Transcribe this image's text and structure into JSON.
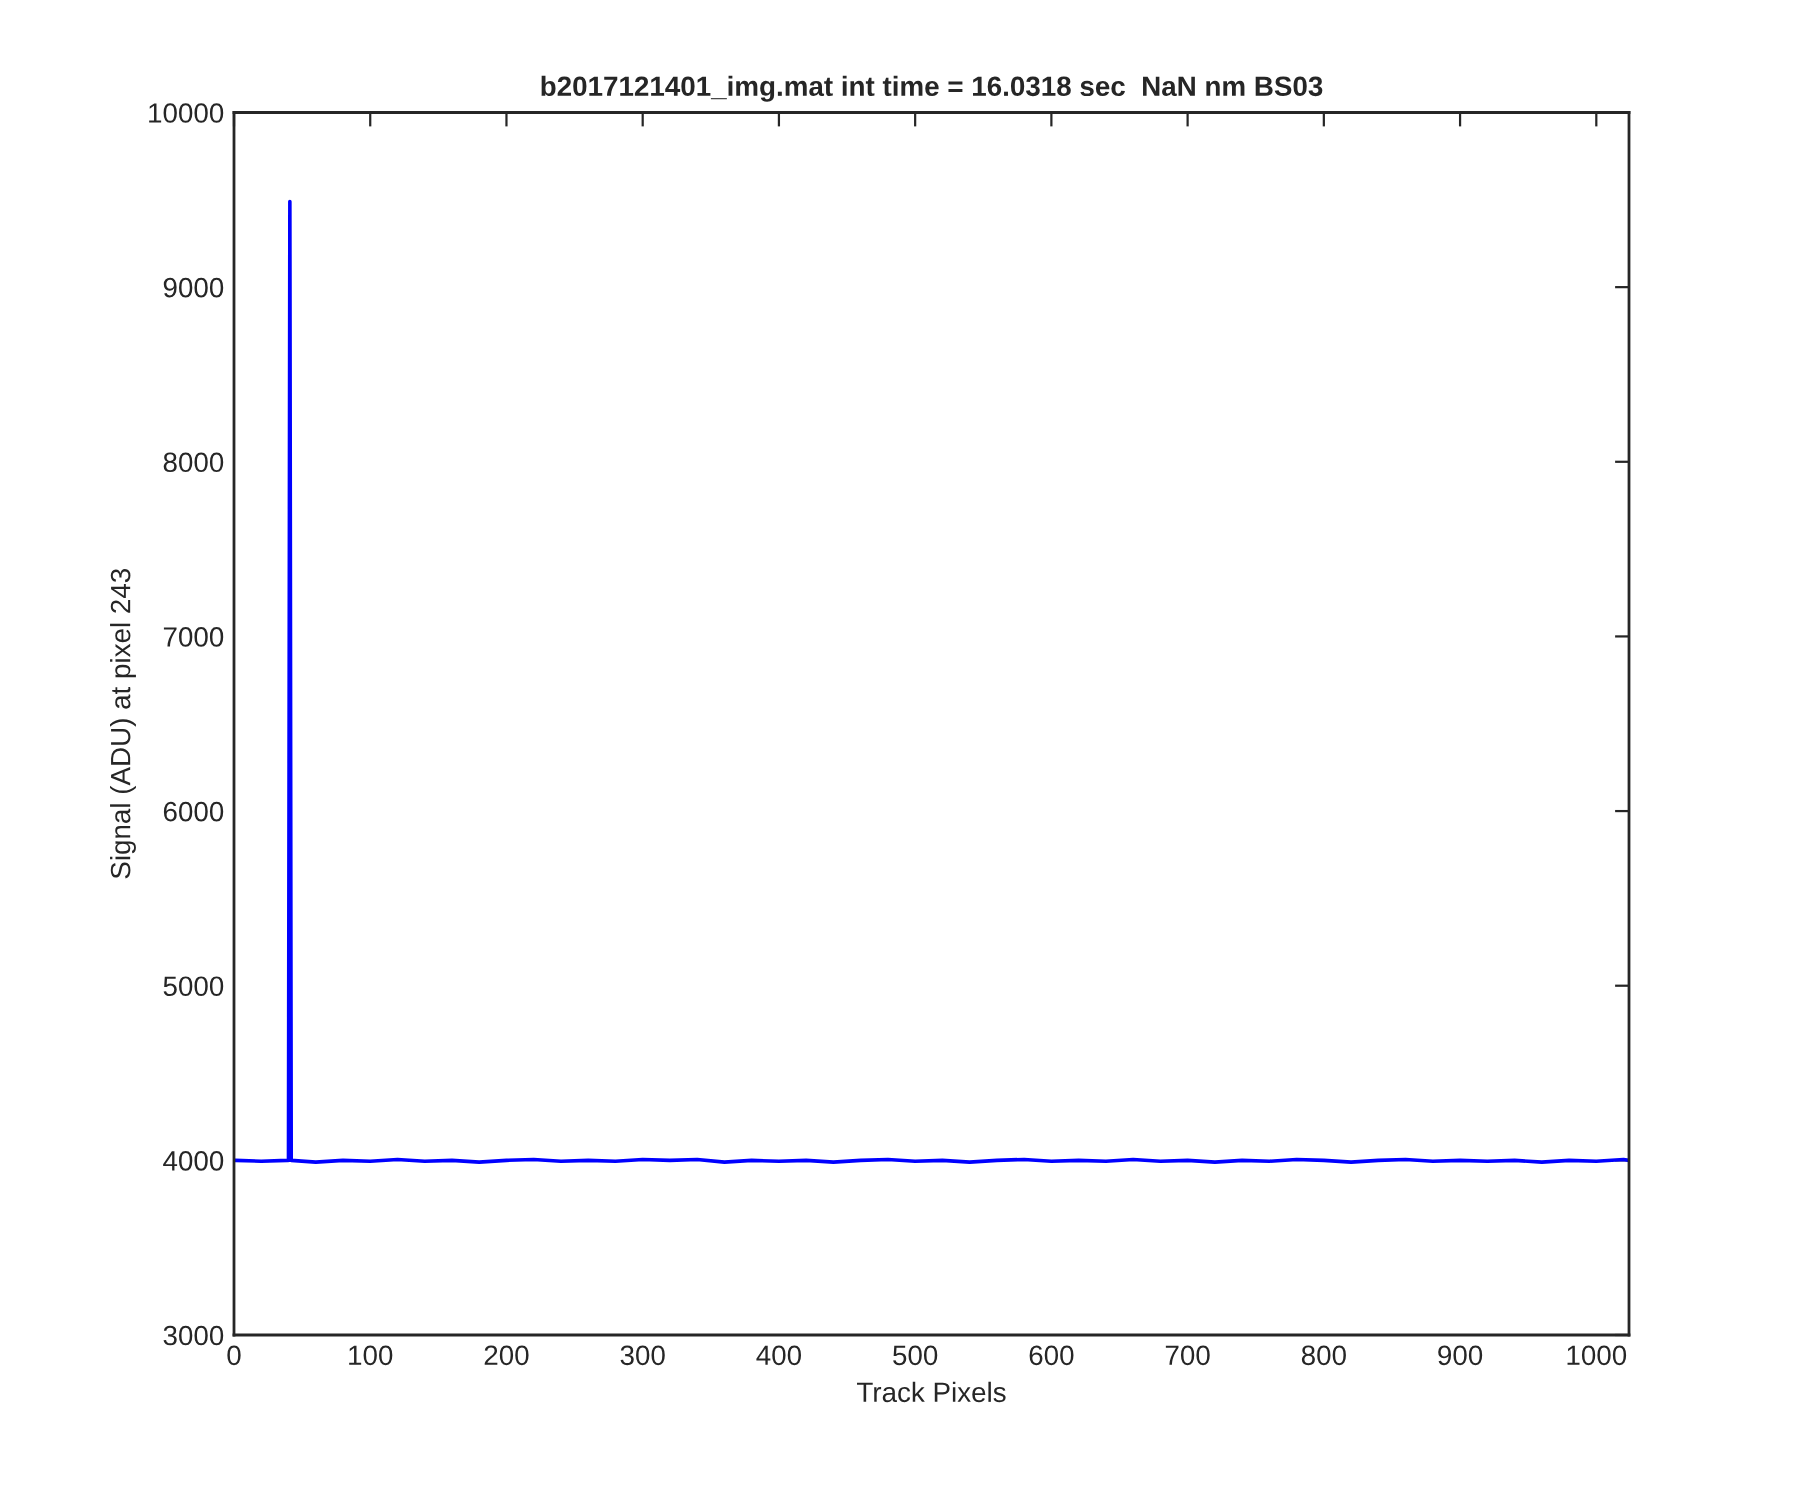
{
  "chart_data": {
    "type": "line",
    "title": "b2017121401_img.mat int time = 16.0318 sec  NaN nm BS03",
    "xlabel": "Track Pixels",
    "ylabel": "Signal (ADU) at pixel 243",
    "series": [
      {
        "color": "#0000ff",
        "x": [
          1,
          20,
          39,
          40,
          41,
          42,
          60,
          80,
          100,
          120,
          140,
          160,
          180,
          200,
          220,
          240,
          260,
          280,
          300,
          320,
          340,
          360,
          380,
          400,
          420,
          440,
          460,
          480,
          500,
          520,
          540,
          560,
          580,
          600,
          620,
          640,
          660,
          680,
          700,
          720,
          740,
          760,
          780,
          800,
          820,
          840,
          860,
          880,
          900,
          920,
          940,
          960,
          980,
          1000,
          1020,
          1024
        ],
        "values": [
          4000,
          3995,
          4000,
          4000,
          9490,
          4000,
          3990,
          4000,
          3995,
          4005,
          3995,
          4000,
          3990,
          4000,
          4005,
          3995,
          4000,
          3995,
          4005,
          4000,
          4005,
          3990,
          4000,
          3995,
          4000,
          3990,
          4000,
          4005,
          3995,
          4000,
          3990,
          4000,
          4005,
          3995,
          4000,
          3995,
          4005,
          3995,
          4000,
          3990,
          4000,
          3995,
          4005,
          4000,
          3990,
          4000,
          4005,
          3995,
          4000,
          3995,
          4000,
          3990,
          4000,
          3995,
          4005,
          4000
        ]
      }
    ],
    "xlim": [
      0,
      1024
    ],
    "xticks": [
      0,
      100,
      200,
      300,
      400,
      500,
      600,
      700,
      800,
      900,
      1000
    ],
    "ylim": [
      3000,
      10000
    ],
    "yticks": [
      3000,
      4000,
      5000,
      6000,
      7000,
      8000,
      9000,
      10000
    ],
    "grid": false,
    "legend": false,
    "marker": "none",
    "line_style": "solid"
  }
}
